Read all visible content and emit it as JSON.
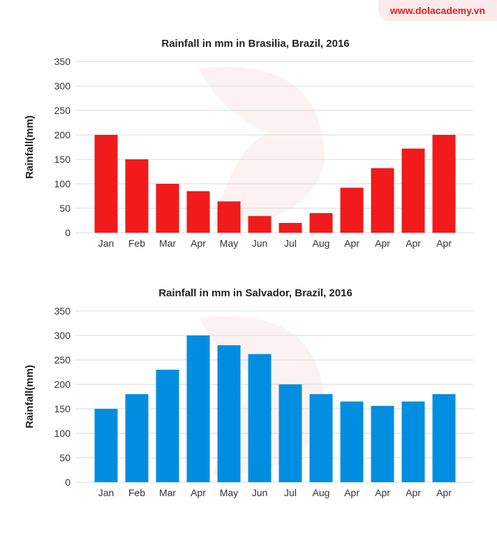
{
  "watermark": "www.dolacademy.vn",
  "chart_data": [
    {
      "type": "bar",
      "title": "Rainfall in mm in Brasilia, Brazil, 2016",
      "ylabel": "Rainfall(mm)",
      "xlabel": "",
      "categories": [
        "Jan",
        "Feb",
        "Mar",
        "Apr",
        "May",
        "Jun",
        "Jul",
        "Aug",
        "Apr",
        "Apr",
        "Apr",
        "Apr"
      ],
      "values": [
        200,
        150,
        100,
        85,
        64,
        34,
        20,
        40,
        92,
        132,
        172,
        200
      ],
      "ylim": [
        0,
        350
      ],
      "yticks": [
        0,
        50,
        100,
        150,
        200,
        250,
        300,
        350
      ],
      "grid": true,
      "color": "#f21a1a"
    },
    {
      "type": "bar",
      "title": "Rainfall in mm in Salvador, Brazil, 2016",
      "ylabel": "Rainfall(mm)",
      "xlabel": "",
      "categories": [
        "Jan",
        "Feb",
        "Mar",
        "Apr",
        "May",
        "Jun",
        "Jul",
        "Aug",
        "Apr",
        "Apr",
        "Apr",
        "Apr"
      ],
      "values": [
        150,
        180,
        230,
        300,
        280,
        262,
        200,
        180,
        165,
        156,
        165,
        180
      ],
      "ylim": [
        0,
        350
      ],
      "yticks": [
        0,
        50,
        100,
        150,
        200,
        250,
        300,
        350
      ],
      "grid": true,
      "color": "#028ee0"
    }
  ]
}
